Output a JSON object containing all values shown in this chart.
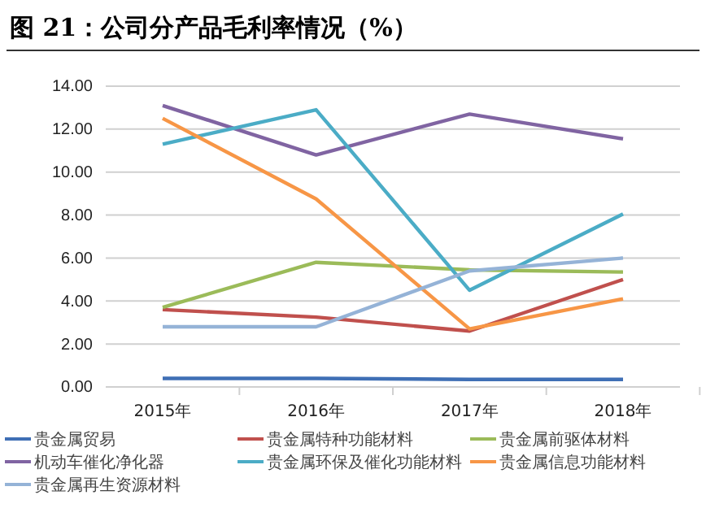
{
  "chart_data": {
    "type": "line",
    "title": "图 21：公司分产品毛利率情况（%）",
    "categories": [
      "2015年",
      "2016年",
      "2017年",
      "2018年"
    ],
    "series": [
      {
        "name": "贵金属贸易",
        "color": "#3f6fb5",
        "values": [
          0.4,
          0.4,
          0.35,
          0.35
        ]
      },
      {
        "name": "贵金属特种功能材料",
        "color": "#c0504d",
        "values": [
          3.6,
          3.25,
          2.6,
          5.0
        ]
      },
      {
        "name": "贵金属前驱体材料",
        "color": "#9bbb59",
        "values": [
          3.7,
          5.8,
          5.45,
          5.35
        ]
      },
      {
        "name": "机动车催化净化器",
        "color": "#8064a2",
        "values": [
          13.1,
          10.8,
          12.7,
          11.55
        ]
      },
      {
        "name": "贵金属环保及催化功能材料",
        "color": "#4bacc6",
        "values": [
          11.3,
          12.9,
          4.5,
          8.05
        ]
      },
      {
        "name": "贵金属信息功能材料",
        "color": "#f79646",
        "values": [
          12.5,
          8.75,
          2.7,
          4.1
        ]
      },
      {
        "name": "贵金属再生资源材料",
        "color": "#95b3d7",
        "values": [
          2.8,
          2.8,
          5.4,
          6.0
        ]
      }
    ],
    "ylim": [
      0,
      14
    ],
    "yticks": [
      {
        "value": 0,
        "label": "0.00"
      },
      {
        "value": 2,
        "label": "2.00"
      },
      {
        "value": 4,
        "label": "4.00"
      },
      {
        "value": 6,
        "label": "6.00"
      },
      {
        "value": 8,
        "label": "8.00"
      },
      {
        "value": 10,
        "label": "10.00"
      },
      {
        "value": 12,
        "label": "12.00"
      },
      {
        "value": 14,
        "label": "14.00"
      }
    ],
    "grid": "y",
    "legend": "bottom",
    "marker": "none",
    "line_style": "solid"
  }
}
